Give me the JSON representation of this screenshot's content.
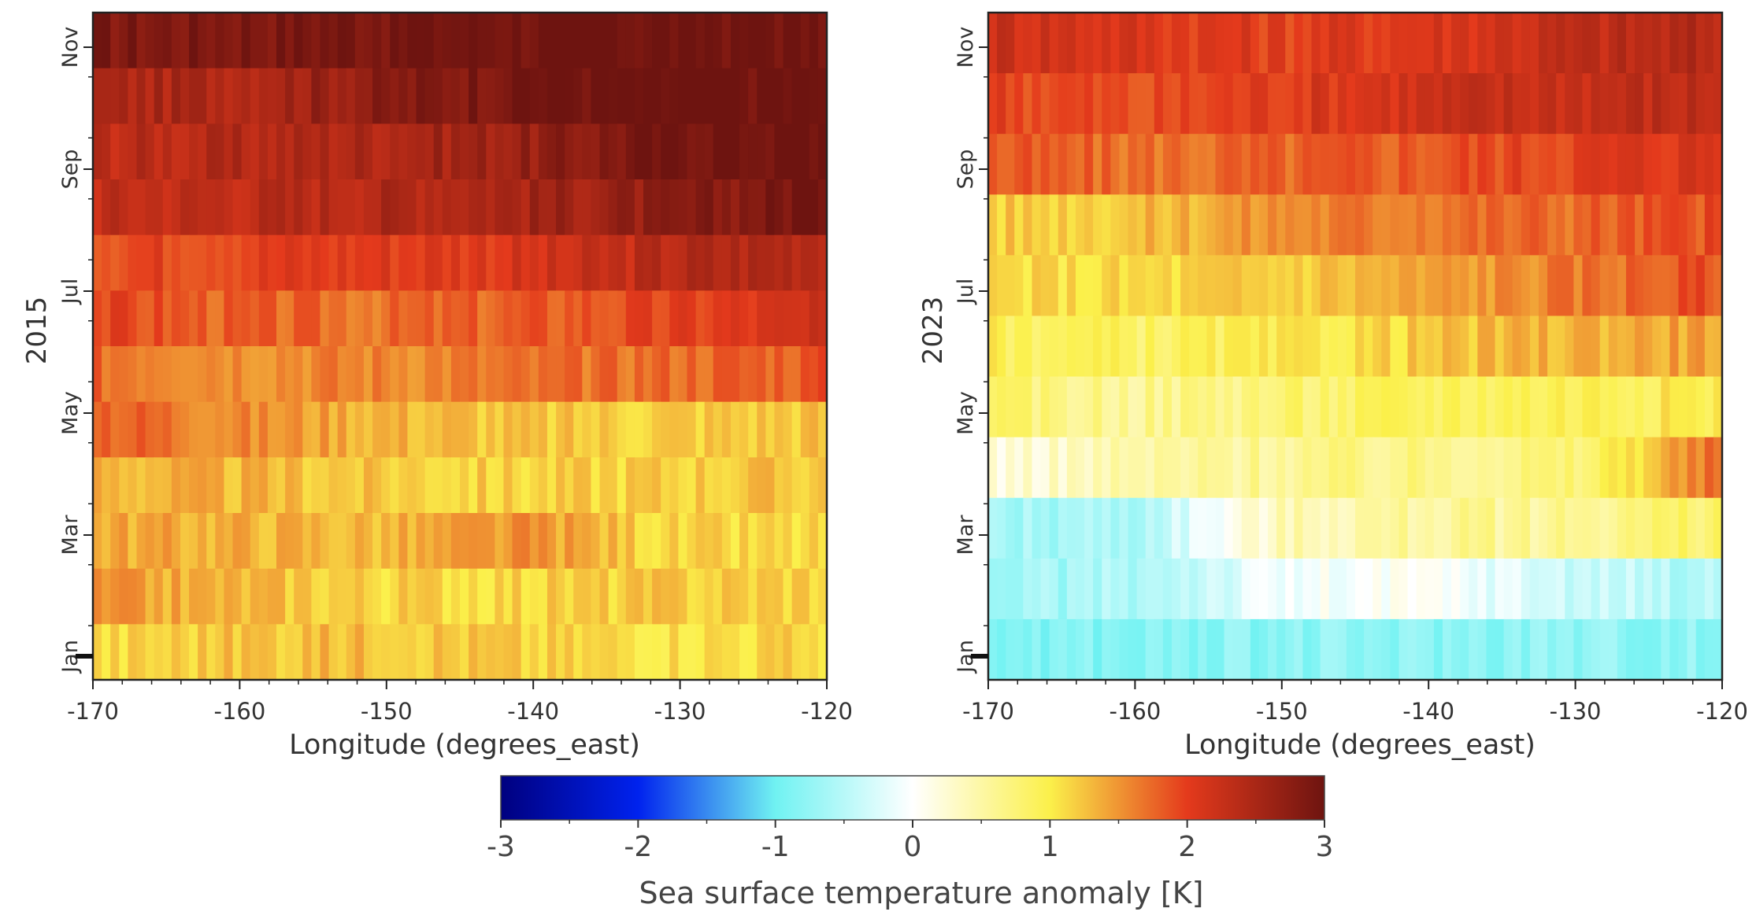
{
  "chart_data": {
    "type": "heatmap",
    "colorbar": {
      "label": "Sea surface temperature anomaly [K]",
      "range": [
        -3,
        3
      ],
      "ticks": [
        "-3",
        "-2",
        "-1",
        "0",
        "1",
        "2",
        "3"
      ],
      "stops": [
        {
          "v": -3.0,
          "c": "#00007f"
        },
        {
          "v": -2.0,
          "c": "#0022ee"
        },
        {
          "v": -1.0,
          "c": "#70f2f2"
        },
        {
          "v": 0.0,
          "c": "#ffffff"
        },
        {
          "v": 1.0,
          "c": "#fbf04a"
        },
        {
          "v": 2.0,
          "c": "#e43a1c"
        },
        {
          "v": 3.0,
          "c": "#6e1410"
        }
      ]
    },
    "panels": [
      {
        "ylabel": "2015",
        "xlabel": "Longitude (degrees_east)",
        "x_ticks": [
          "-170",
          "-160",
          "-150",
          "-140",
          "-130",
          "-120"
        ],
        "xlim": [
          -170,
          -120
        ],
        "y_ticks": [
          "Jan",
          "Mar",
          "May",
          "Jul",
          "Sep",
          "Nov"
        ],
        "rows": [
          {
            "month": "Nov-late",
            "values": [
              2.85,
              2.9,
              2.95,
              3.0,
              3.0,
              3.0
            ]
          },
          {
            "month": "Nov",
            "values": [
              2.45,
              2.5,
              2.75,
              3.0,
              3.0,
              3.0
            ]
          },
          {
            "month": "Oct",
            "values": [
              2.35,
              2.4,
              2.5,
              2.65,
              3.0,
              3.0
            ]
          },
          {
            "month": "Sep",
            "values": [
              2.3,
              2.35,
              2.45,
              2.55,
              2.7,
              3.0
            ]
          },
          {
            "month": "Aug",
            "values": [
              1.95,
              2.0,
              2.05,
              2.1,
              2.4,
              2.5
            ]
          },
          {
            "month": "Jul",
            "values": [
              1.95,
              1.75,
              1.7,
              1.8,
              1.95,
              2.15
            ]
          },
          {
            "month": "Jun",
            "values": [
              1.75,
              1.6,
              1.6,
              1.65,
              1.75,
              1.85
            ]
          },
          {
            "month": "May",
            "values": [
              1.85,
              1.55,
              1.35,
              1.2,
              1.2,
              1.25
            ]
          },
          {
            "month": "Apr",
            "values": [
              1.35,
              1.3,
              1.2,
              1.15,
              1.2,
              1.25
            ]
          },
          {
            "month": "Mar",
            "values": [
              1.4,
              1.35,
              1.3,
              1.5,
              1.1,
              1.1
            ]
          },
          {
            "month": "Feb",
            "values": [
              1.45,
              1.3,
              1.15,
              1.15,
              1.2,
              1.2
            ]
          },
          {
            "month": "Jan",
            "values": [
              1.1,
              1.25,
              1.3,
              1.15,
              1.1,
              1.15
            ]
          }
        ]
      },
      {
        "ylabel": "2023",
        "xlabel": "Longitude (degrees_east)",
        "x_ticks": [
          "-170",
          "-160",
          "-150",
          "-140",
          "-130",
          "-120"
        ],
        "xlim": [
          -170,
          -120
        ],
        "y_ticks": [
          "Jan",
          "Mar",
          "May",
          "Jul",
          "Sep",
          "Nov"
        ],
        "rows": [
          {
            "month": "Nov",
            "values": [
              2.25,
              2.1,
              2.0,
              2.1,
              2.3,
              2.4
            ]
          },
          {
            "month": "Oct",
            "values": [
              2.0,
              1.85,
              2.05,
              2.2,
              2.3,
              2.35
            ]
          },
          {
            "month": "Sep",
            "values": [
              1.8,
              1.7,
              1.75,
              1.85,
              2.0,
              2.15
            ]
          },
          {
            "month": "Aug",
            "values": [
              1.2,
              1.25,
              1.55,
              1.7,
              1.75,
              1.9
            ]
          },
          {
            "month": "Jul",
            "values": [
              1.1,
              1.1,
              1.2,
              1.4,
              1.65,
              1.9
            ]
          },
          {
            "month": "Jun",
            "values": [
              0.95,
              0.85,
              0.95,
              1.2,
              1.35,
              1.45
            ]
          },
          {
            "month": "May",
            "values": [
              0.75,
              0.6,
              0.75,
              0.9,
              0.95,
              1.0
            ]
          },
          {
            "month": "Apr",
            "values": [
              0.2,
              0.45,
              0.6,
              0.65,
              0.7,
              1.7
            ]
          },
          {
            "month": "Mar",
            "values": [
              -0.65,
              -0.55,
              0.4,
              0.55,
              0.6,
              0.85
            ]
          },
          {
            "month": "Feb",
            "values": [
              -0.7,
              -0.55,
              -0.1,
              0.0,
              -0.35,
              -0.55
            ]
          },
          {
            "month": "Jan",
            "values": [
              -0.85,
              -0.85,
              -0.8,
              -0.8,
              -0.75,
              -0.8
            ]
          }
        ]
      }
    ]
  }
}
